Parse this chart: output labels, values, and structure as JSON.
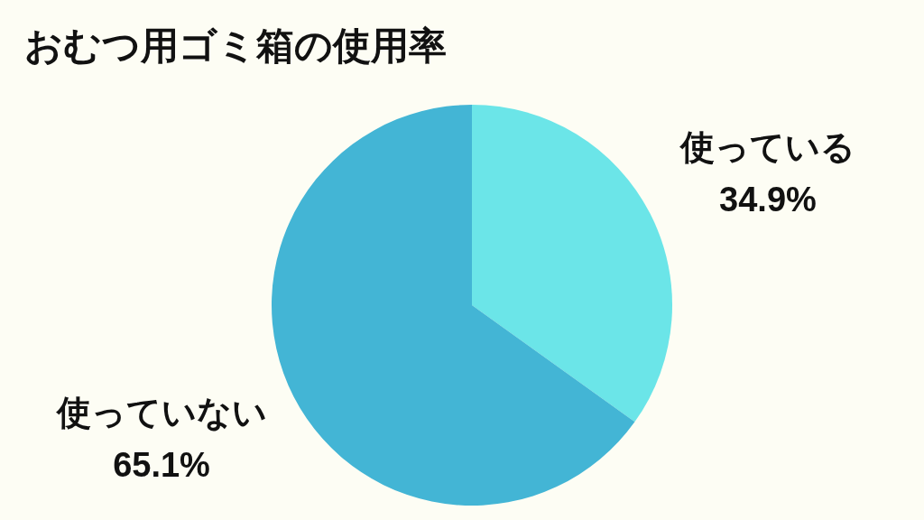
{
  "chart_data": {
    "type": "pie",
    "title": "おむつ用ゴミ箱の使用率",
    "categories": [
      "使っている",
      "使っていない"
    ],
    "values": [
      34.9,
      65.1
    ],
    "colors": [
      "#6be5e8",
      "#43b5d5"
    ],
    "value_labels": [
      "34.9%",
      "65.1%"
    ]
  }
}
